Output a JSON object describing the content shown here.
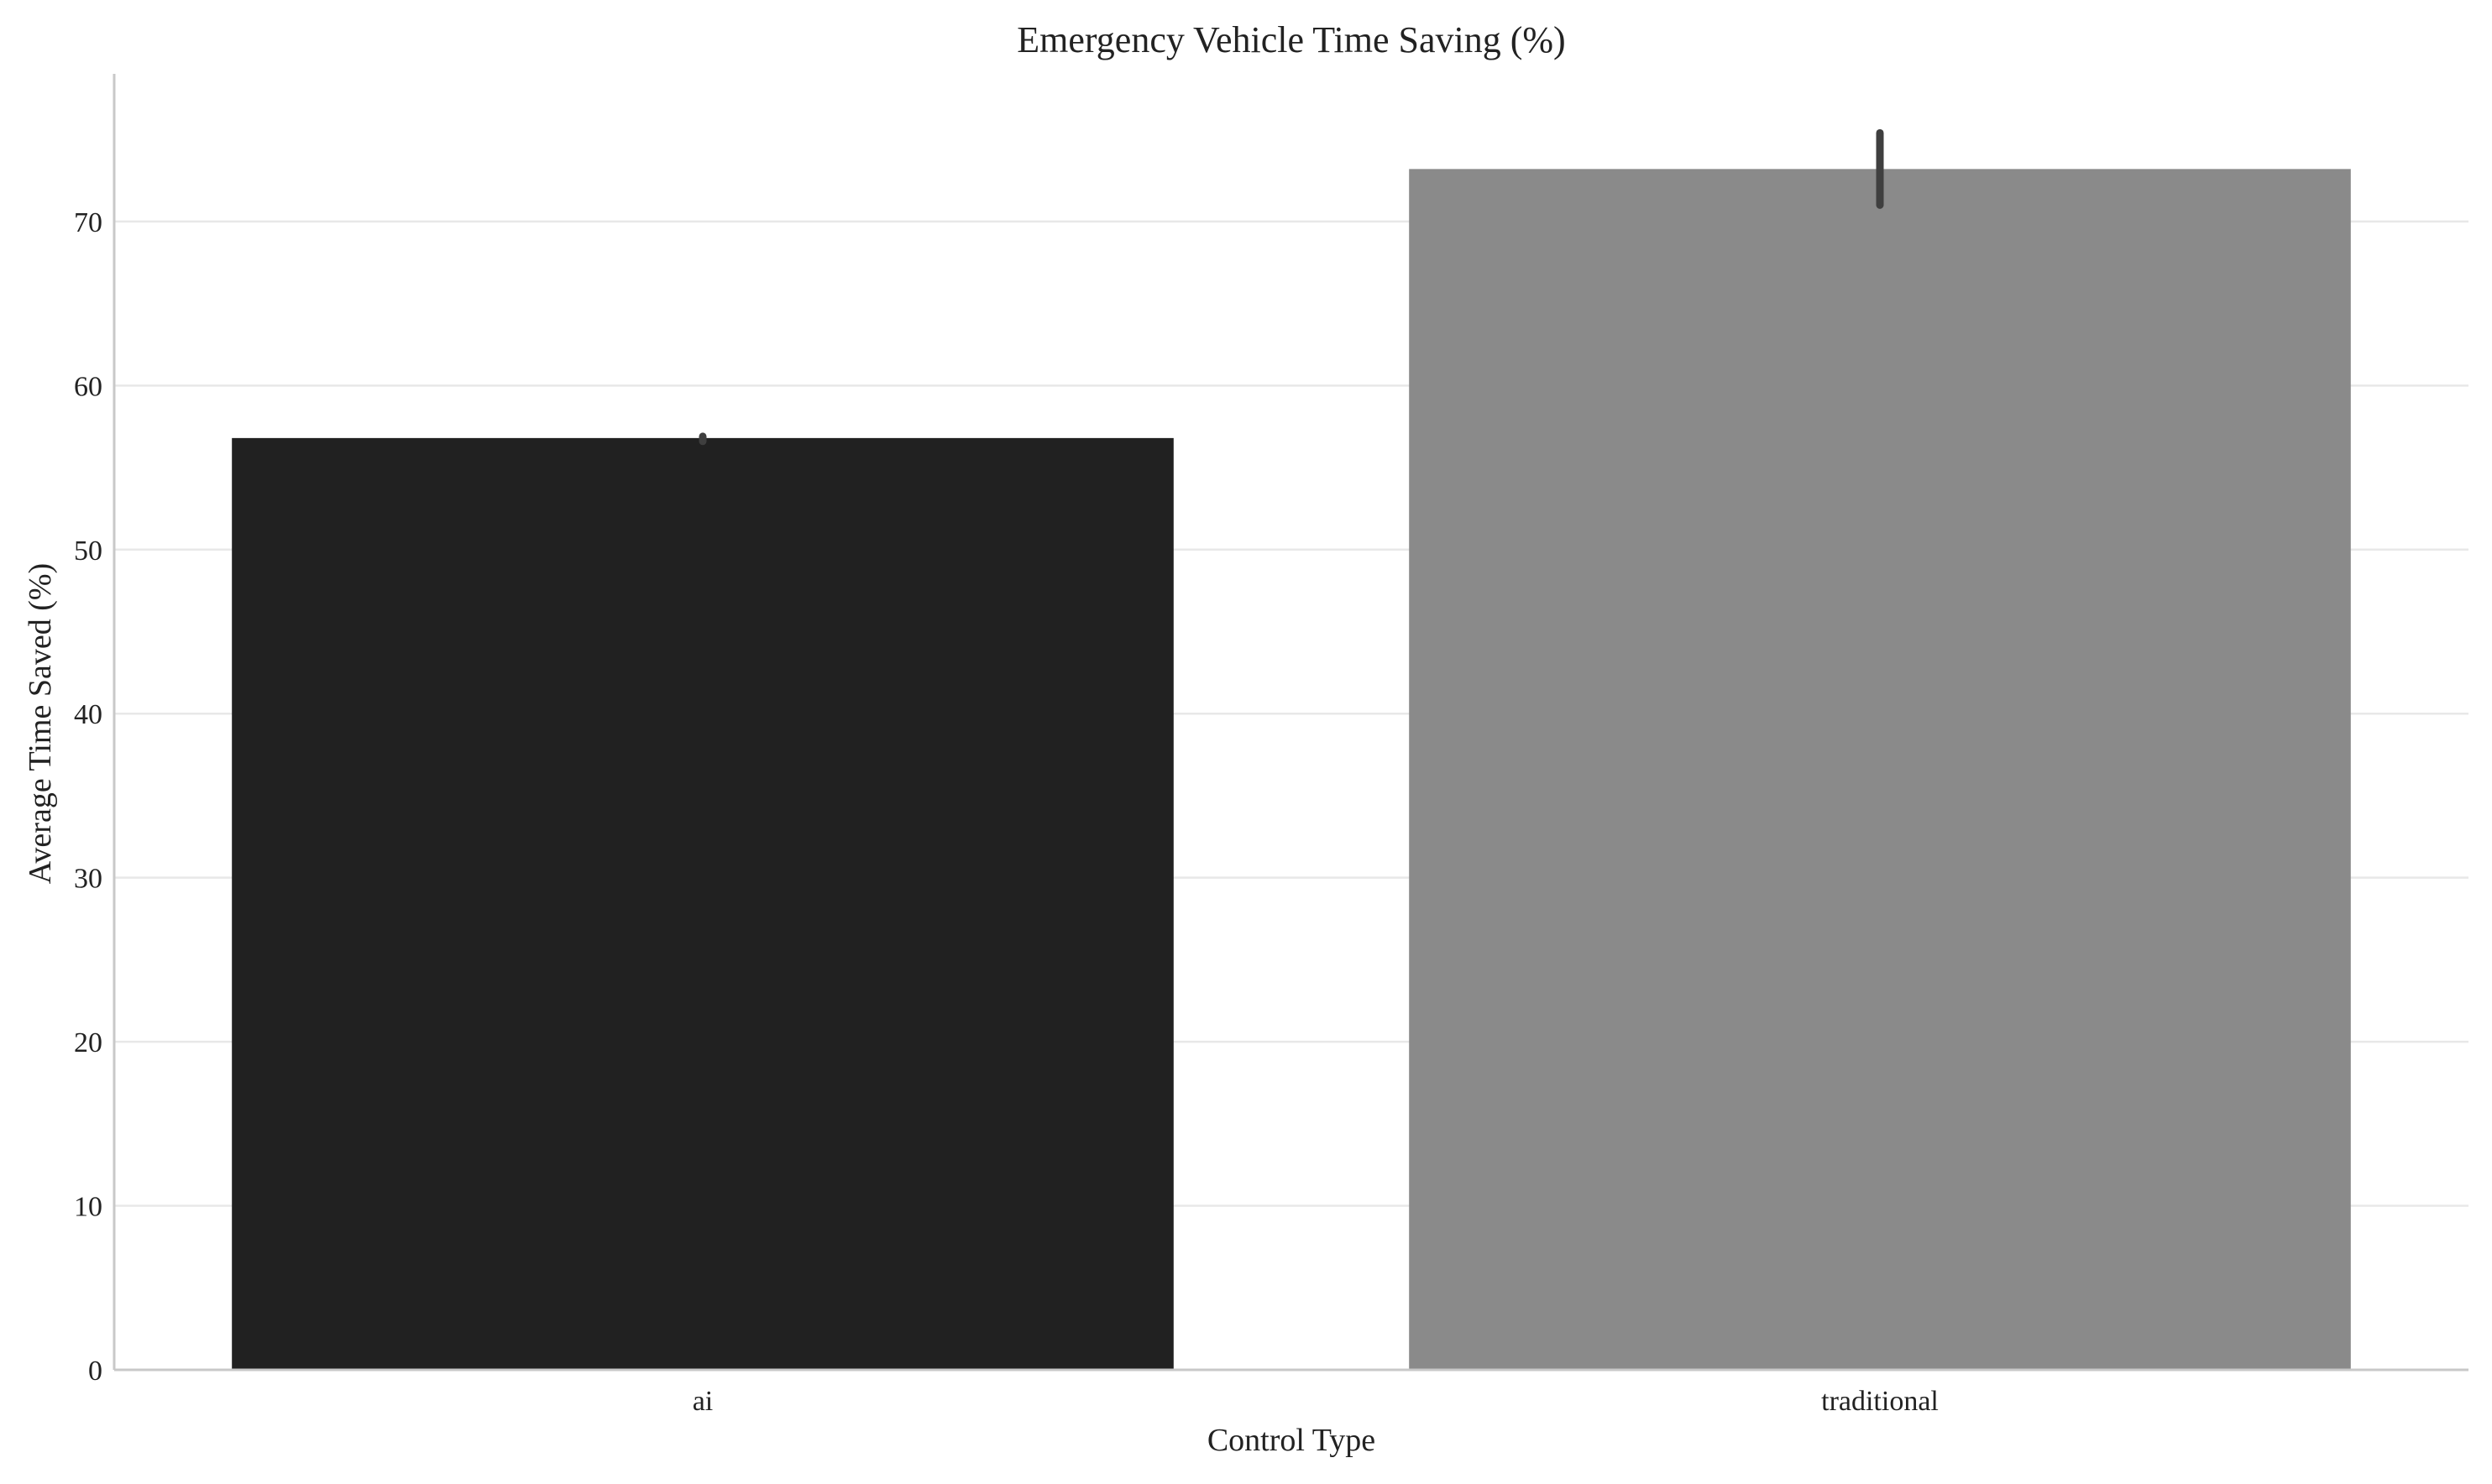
{
  "chart_data": {
    "type": "bar",
    "title": "Emergency Vehicle Time Saving (%)",
    "xlabel": "Control Type",
    "ylabel": "Average Time Saved (%)",
    "categories": [
      "ai",
      "traditional"
    ],
    "values": [
      56.8,
      73.2
    ],
    "error_bars": [
      {
        "low": 56.6,
        "high": 56.9
      },
      {
        "low": 71.0,
        "high": 75.4
      }
    ],
    "colors": [
      "#212121",
      "#8a8a8a"
    ],
    "error_color": "#3f3f3f",
    "ylim": [
      0,
      79
    ],
    "yticks": [
      0,
      10,
      20,
      30,
      40,
      50,
      60,
      70
    ],
    "grid": "horizontal"
  }
}
